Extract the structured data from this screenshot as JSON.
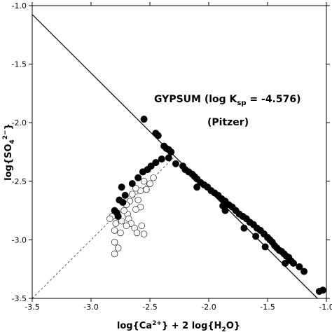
{
  "chart_data": {
    "type": "scatter",
    "xlabel": "log{Ca2+} + 2 log{H2O}",
    "ylabel": "log{SO42-}",
    "xlim": [
      -3.5,
      -1.0
    ],
    "ylim": [
      -3.5,
      -1.0
    ],
    "x_ticks": [
      -3.5,
      -3.0,
      -2.5,
      -2.0,
      -1.5,
      -1.0
    ],
    "y_ticks": [
      -3.5,
      -3.0,
      -2.5,
      -2.0,
      -1.5,
      -1.0
    ],
    "x_tick_labels": [
      "-3.5",
      "-3.0",
      "-2.5",
      "-2.0",
      "-1.5",
      "-1.0"
    ],
    "y_tick_labels": [
      "-3.5",
      "-3.0",
      "-2.5",
      "-2.0",
      "-1.5",
      "-1.0"
    ],
    "grid": false,
    "annotations": {
      "line1_prefix": "GYPSUM (log K",
      "line1_sub": "sp",
      "line1_suffix": " = -4.576)",
      "line2": "(Pitzer)"
    },
    "lines": [
      {
        "style": "solid",
        "color": "#000000",
        "x": [
          -3.5,
          -1.0
        ],
        "y": [
          -1.076,
          -3.576
        ]
      },
      {
        "style": "dashed",
        "color": "#555555",
        "x": [
          -3.5,
          -2.3
        ],
        "y": [
          -3.5,
          -2.3
        ]
      }
    ],
    "series": [
      {
        "marker": "filled",
        "points": [
          [
            -2.55,
            -1.97
          ],
          [
            -2.45,
            -2.09
          ],
          [
            -2.43,
            -2.11
          ],
          [
            -2.38,
            -2.2
          ],
          [
            -2.36,
            -2.22
          ],
          [
            -2.34,
            -2.23
          ],
          [
            -2.32,
            -2.25
          ],
          [
            -2.34,
            -2.3
          ],
          [
            -2.4,
            -2.31
          ],
          [
            -2.45,
            -2.34
          ],
          [
            -2.49,
            -2.37
          ],
          [
            -2.52,
            -2.4
          ],
          [
            -2.56,
            -2.42
          ],
          [
            -2.6,
            -2.47
          ],
          [
            -2.65,
            -2.52
          ],
          [
            -2.74,
            -2.55
          ],
          [
            -2.71,
            -2.62
          ],
          [
            -2.76,
            -2.66
          ],
          [
            -2.73,
            -2.68
          ],
          [
            -2.8,
            -2.75
          ],
          [
            -2.78,
            -2.77
          ],
          [
            -2.77,
            -2.8
          ],
          [
            -2.28,
            -2.35
          ],
          [
            -2.22,
            -2.37
          ],
          [
            -2.2,
            -2.4
          ],
          [
            -2.17,
            -2.42
          ],
          [
            -2.14,
            -2.44
          ],
          [
            -2.12,
            -2.46
          ],
          [
            -2.1,
            -2.48
          ],
          [
            -2.07,
            -2.51
          ],
          [
            -2.04,
            -2.53
          ],
          [
            -2.01,
            -2.55
          ],
          [
            -2.1,
            -2.55
          ],
          [
            -1.98,
            -2.58
          ],
          [
            -1.95,
            -2.6
          ],
          [
            -1.92,
            -2.62
          ],
          [
            -1.89,
            -2.65
          ],
          [
            -1.86,
            -2.67
          ],
          [
            -1.83,
            -2.7
          ],
          [
            -1.8,
            -2.72
          ],
          [
            -1.88,
            -2.71
          ],
          [
            -1.86,
            -2.75
          ],
          [
            -1.77,
            -2.75
          ],
          [
            -1.74,
            -2.78
          ],
          [
            -1.71,
            -2.8
          ],
          [
            -1.68,
            -2.82
          ],
          [
            -1.65,
            -2.85
          ],
          [
            -1.62,
            -2.87
          ],
          [
            -1.7,
            -2.9
          ],
          [
            -1.59,
            -2.9
          ],
          [
            -1.56,
            -2.92
          ],
          [
            -1.53,
            -2.95
          ],
          [
            -1.6,
            -2.97
          ],
          [
            -1.5,
            -2.98
          ],
          [
            -1.48,
            -3.0
          ],
          [
            -1.46,
            -3.02
          ],
          [
            -1.44,
            -3.05
          ],
          [
            -1.52,
            -3.06
          ],
          [
            -1.42,
            -3.07
          ],
          [
            -1.4,
            -3.09
          ],
          [
            -1.38,
            -3.1
          ],
          [
            -1.36,
            -3.12
          ],
          [
            -1.34,
            -3.14
          ],
          [
            -1.32,
            -3.15
          ],
          [
            -1.35,
            -3.2
          ],
          [
            -1.3,
            -3.18
          ],
          [
            -1.28,
            -3.2
          ],
          [
            -1.23,
            -3.23
          ],
          [
            -1.19,
            -3.27
          ],
          [
            -1.06,
            -3.44
          ],
          [
            -1.03,
            -3.43
          ]
        ]
      },
      {
        "marker": "open",
        "points": [
          [
            -2.47,
            -2.47
          ],
          [
            -2.5,
            -2.52
          ],
          [
            -2.55,
            -2.5
          ],
          [
            -2.58,
            -2.58
          ],
          [
            -2.53,
            -2.57
          ],
          [
            -2.62,
            -2.56
          ],
          [
            -2.65,
            -2.61
          ],
          [
            -2.6,
            -2.66
          ],
          [
            -2.67,
            -2.67
          ],
          [
            -2.7,
            -2.7
          ],
          [
            -2.58,
            -2.72
          ],
          [
            -2.62,
            -2.74
          ],
          [
            -2.69,
            -2.78
          ],
          [
            -2.72,
            -2.75
          ],
          [
            -2.68,
            -2.82
          ],
          [
            -2.66,
            -2.86
          ],
          [
            -2.7,
            -2.88
          ],
          [
            -2.74,
            -2.84
          ],
          [
            -2.79,
            -2.86
          ],
          [
            -2.82,
            -2.8
          ],
          [
            -2.84,
            -2.82
          ],
          [
            -2.8,
            -2.92
          ],
          [
            -2.75,
            -2.94
          ],
          [
            -2.63,
            -2.9
          ],
          [
            -2.61,
            -2.94
          ],
          [
            -2.55,
            -2.95
          ],
          [
            -2.57,
            -2.88
          ],
          [
            -2.8,
            -3.02
          ],
          [
            -2.77,
            -3.07
          ],
          [
            -2.8,
            -3.12
          ]
        ]
      }
    ]
  }
}
